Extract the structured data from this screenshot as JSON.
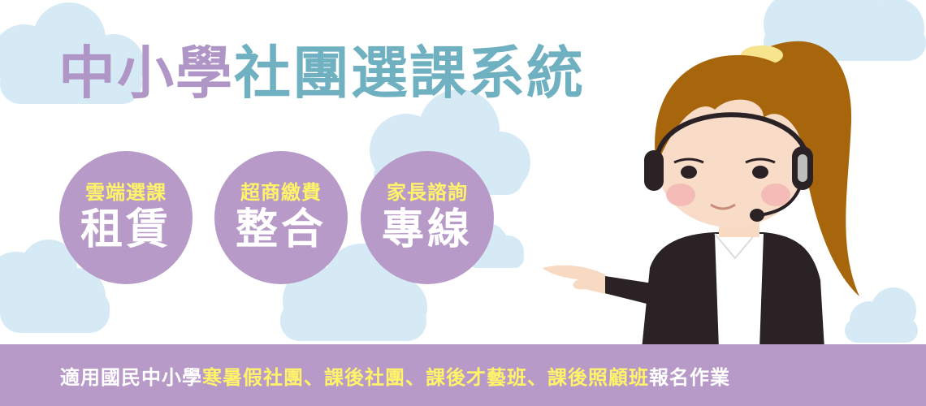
{
  "title": {
    "part_a": "中小學",
    "part_b": "社團選課系統"
  },
  "badges": [
    {
      "small": "雲端選課",
      "big": "租賃"
    },
    {
      "small": "超商繳費",
      "big": "整合"
    },
    {
      "small": "家長諮詢",
      "big": "專線"
    }
  ],
  "bottom_bar": {
    "prefix": "適用國民中小學",
    "highlight": "寒暑假社團、課後社團、課後才藝班、課後照顧班",
    "suffix": "報名作業"
  },
  "colors": {
    "title_purple": "#b096c6",
    "title_teal": "#6fb0c1",
    "badge_purple": "#b79ac8",
    "highlight_yellow": "#fff36a",
    "cloud_blue": "#d6eaf6"
  },
  "illustration": {
    "subject": "customer-service-agent-with-headset-icon"
  }
}
